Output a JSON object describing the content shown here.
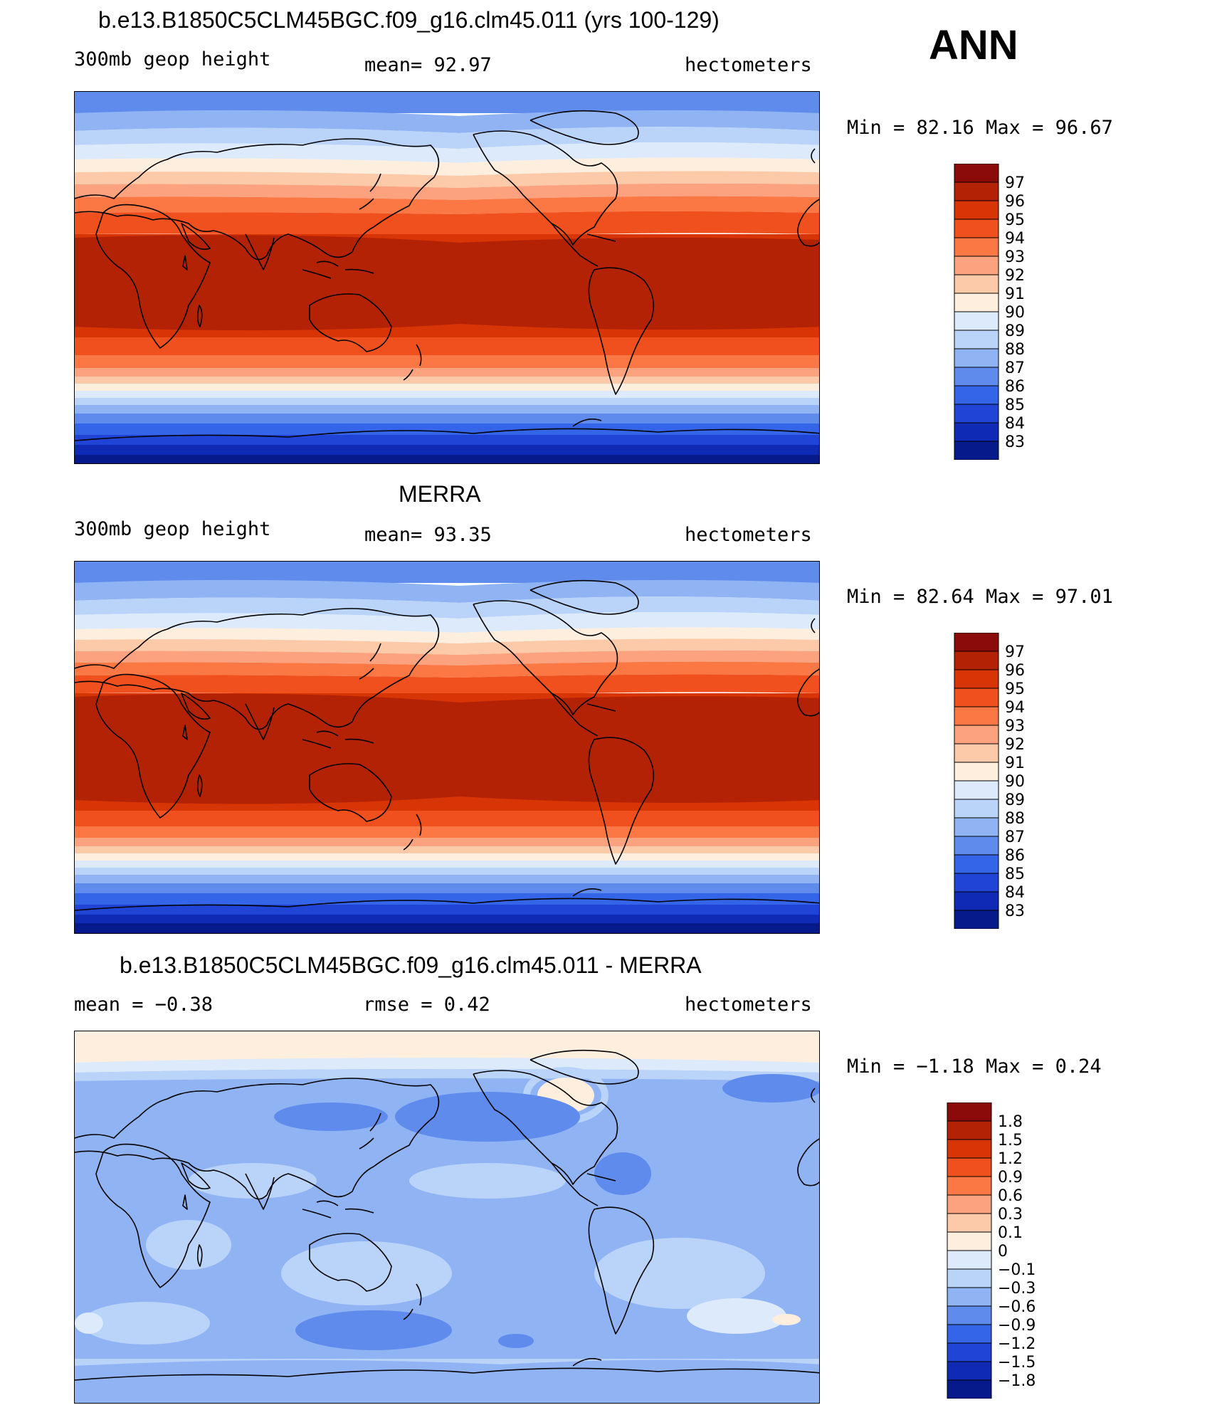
{
  "season": "ANN",
  "panels": [
    {
      "id": "model",
      "title": "b.e13.B1850C5CLM45BGC.f09_g16.clm45.011 (yrs 100-129)",
      "left_label": "300mb  geop  height",
      "center_label": "mean=   92.97",
      "right_label": "hectometers",
      "minmax": "Min  =    82.16  Max  =    96.67",
      "field": "absolute"
    },
    {
      "id": "obs",
      "title": "MERRA",
      "left_label": "300mb  geop  height",
      "center_label": "mean=   93.35",
      "right_label": "hectometers",
      "minmax": "Min  =    82.64  Max  =    97.01",
      "field": "absolute"
    },
    {
      "id": "diff",
      "title": "b.e13.B1850C5CLM45BGC.f09_g16.clm45.011 - MERRA",
      "left_label": "mean  =    −0.38",
      "center_label": "rmse  =     0.42",
      "right_label": "hectometers",
      "minmax": "Min  =    −1.18  Max  =      0.24",
      "field": "difference"
    }
  ],
  "colorbars": {
    "absolute": {
      "levels": [
        "97",
        "96",
        "95",
        "94",
        "93",
        "92",
        "91",
        "90",
        "89",
        "88",
        "87",
        "86",
        "85",
        "84",
        "83"
      ],
      "colors": [
        "#8b0a0a",
        "#b32205",
        "#d83506",
        "#f0501d",
        "#fb7743",
        "#fca27e",
        "#fdcaa9",
        "#fdeede",
        "#ddeafb",
        "#b9d3f9",
        "#90b3f4",
        "#5f8bec",
        "#3464e8",
        "#1f44d6",
        "#0f2ab5",
        "#061a8c"
      ]
    },
    "difference": {
      "levels": [
        "1.8",
        "1.5",
        "1.2",
        "0.9",
        "0.6",
        "0.3",
        "0.1",
        "0",
        "−0.1",
        "−0.3",
        "−0.6",
        "−0.9",
        "−1.2",
        "−1.5",
        "−1.8"
      ],
      "colors": [
        "#8b0a0a",
        "#b32205",
        "#d83506",
        "#f0501d",
        "#fb7743",
        "#fca27e",
        "#fdcaa9",
        "#fdeede",
        "#ddeafb",
        "#b9d3f9",
        "#90b3f4",
        "#5f8bec",
        "#3464e8",
        "#1f44d6",
        "#0f2ab5",
        "#061a8c"
      ]
    }
  }
}
